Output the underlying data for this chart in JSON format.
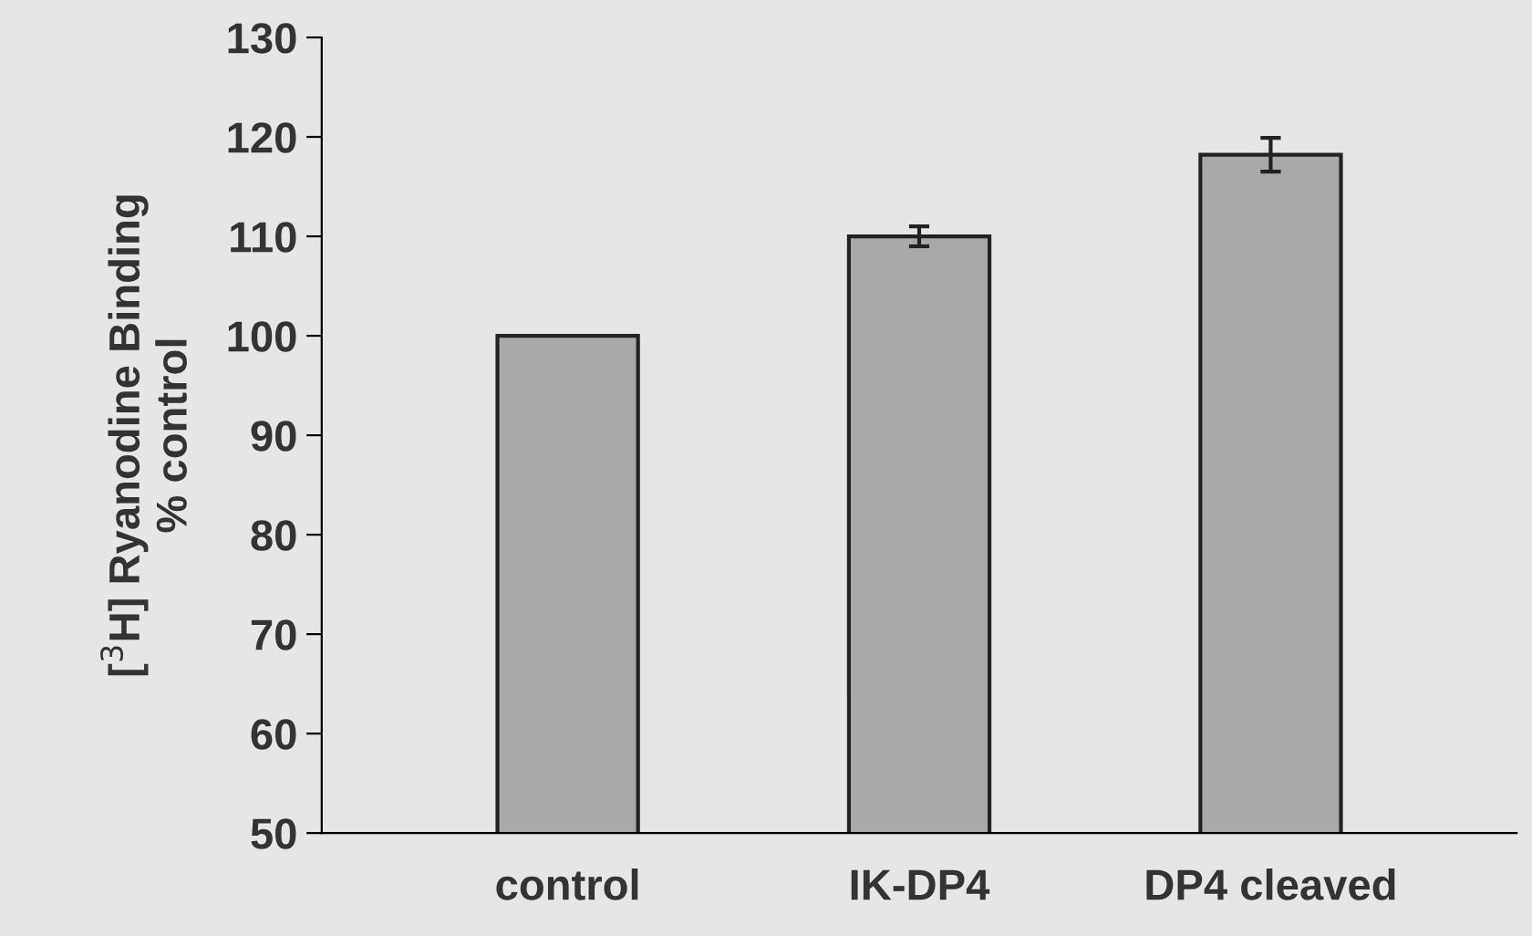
{
  "chart_data": {
    "type": "bar",
    "ylabel": "[$^{3}$H] Ryanodine Binding\n% control",
    "categories": [
      "control",
      "IK-DP4",
      "DP4 cleaved"
    ],
    "values": [
      100,
      110,
      118.2
    ],
    "errors": [
      null,
      1,
      1.7
    ],
    "color": "#a9a9a9",
    "ylim": [
      50,
      130
    ],
    "yticks": [
      50,
      60,
      70,
      80,
      90,
      100,
      110,
      120,
      130
    ],
    "grid": false
  }
}
